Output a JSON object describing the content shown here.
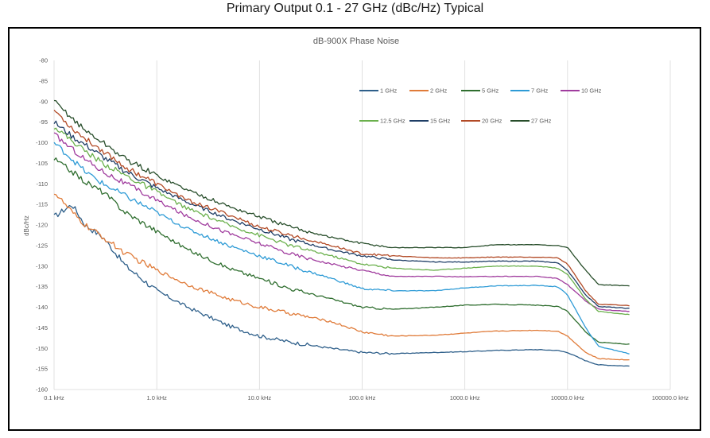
{
  "header": {
    "title": "Primary Output 0.1 - 27 GHz (dBc/Hz) Typical"
  },
  "chart_data": {
    "type": "line",
    "title": "dB-900X Phase Noise",
    "xlabel": "",
    "ylabel": "dBc/Hz",
    "x_scale": "log",
    "xlim": [
      0.1,
      100000
    ],
    "ylim": [
      -160,
      -80
    ],
    "x_ticks": [
      0.1,
      1,
      10,
      100,
      1000,
      10000,
      100000
    ],
    "x_tick_labels": [
      "0.1 kHz",
      "1.0 kHz",
      "10.0 kHz",
      "100.0 kHz",
      "1000.0 kHz",
      "10000.0 kHz",
      "100000.0 kHz"
    ],
    "y_ticks": [
      -80,
      -85,
      -90,
      -95,
      -100,
      -105,
      -110,
      -115,
      -120,
      -125,
      -130,
      -135,
      -140,
      -145,
      -150,
      -155,
      -160
    ],
    "grid": "vertical",
    "legend_position": "top-right",
    "series": [
      {
        "name": "1 GHz",
        "color": "#2E5F8A",
        "x": [
          0.1,
          0.15,
          0.2,
          0.3,
          0.5,
          1,
          2,
          5,
          10,
          20,
          50,
          100,
          200,
          500,
          1000,
          2000,
          5000,
          8000,
          10000,
          15000,
          20000,
          40000
        ],
        "y": [
          -118,
          -115,
          -120,
          -123,
          -130,
          -136,
          -140,
          -144.5,
          -147,
          -148.5,
          -150,
          -151,
          -151.3,
          -151,
          -150.8,
          -150.5,
          -150.3,
          -150.5,
          -151,
          -153,
          -154,
          -154.3
        ]
      },
      {
        "name": "2 GHz",
        "color": "#E07B39",
        "x": [
          0.1,
          0.15,
          0.2,
          0.3,
          0.5,
          1,
          2,
          5,
          10,
          20,
          50,
          100,
          200,
          500,
          1000,
          2000,
          5000,
          8000,
          10000,
          15000,
          20000,
          40000
        ],
        "y": [
          -112,
          -117,
          -120,
          -123,
          -127,
          -131,
          -134.5,
          -138,
          -140,
          -141.5,
          -143.5,
          -146,
          -147,
          -146.8,
          -146.3,
          -145.8,
          -145.6,
          -145.8,
          -147,
          -151,
          -152.5,
          -152.8
        ]
      },
      {
        "name": "5 GHz",
        "color": "#2F6E2F",
        "x": [
          0.1,
          0.15,
          0.2,
          0.3,
          0.5,
          1,
          2,
          5,
          10,
          20,
          50,
          100,
          200,
          500,
          1000,
          2000,
          5000,
          8000,
          10000,
          15000,
          20000,
          40000
        ],
        "y": [
          -104,
          -107,
          -109.5,
          -112,
          -117,
          -121.5,
          -126,
          -130.5,
          -133,
          -135.5,
          -138,
          -140,
          -140.5,
          -140,
          -139.5,
          -139.3,
          -139.5,
          -139.8,
          -141,
          -146,
          -148.5,
          -149
        ]
      },
      {
        "name": "7 GHz",
        "color": "#2E9BD6",
        "x": [
          0.1,
          0.15,
          0.2,
          0.3,
          0.5,
          1,
          2,
          5,
          10,
          20,
          50,
          100,
          200,
          500,
          1000,
          2000,
          5000,
          8000,
          10000,
          15000,
          20000,
          40000
        ],
        "y": [
          -100,
          -104,
          -107,
          -110,
          -113,
          -117,
          -121,
          -125,
          -127.5,
          -130,
          -133,
          -135.5,
          -136,
          -136,
          -135.3,
          -134.8,
          -134.7,
          -135,
          -137,
          -145,
          -149.5,
          -151.3
        ]
      },
      {
        "name": "10 GHz",
        "color": "#A03C9E",
        "x": [
          0.1,
          0.15,
          0.2,
          0.3,
          0.5,
          1,
          2,
          5,
          10,
          20,
          50,
          100,
          200,
          500,
          1000,
          2000,
          5000,
          8000,
          10000,
          15000,
          20000,
          40000
        ],
        "y": [
          -98,
          -101.5,
          -104,
          -107,
          -110,
          -114,
          -118,
          -122,
          -124.5,
          -127,
          -129.5,
          -131,
          -132.5,
          -132.5,
          -132.6,
          -132.5,
          -132.5,
          -133,
          -134.5,
          -138.5,
          -140.5,
          -141
        ]
      },
      {
        "name": "12.5 GHz",
        "color": "#6AB04C",
        "x": [
          0.1,
          0.15,
          0.2,
          0.3,
          0.5,
          1,
          2,
          5,
          10,
          20,
          50,
          100,
          200,
          500,
          1000,
          2000,
          5000,
          8000,
          10000,
          15000,
          20000,
          40000
        ],
        "y": [
          -96,
          -99.5,
          -102,
          -105,
          -108,
          -112,
          -116,
          -120,
          -122.5,
          -125,
          -127.5,
          -129.5,
          -130.5,
          -131,
          -130.5,
          -130,
          -130,
          -130.5,
          -132,
          -138,
          -141,
          -141.8
        ]
      },
      {
        "name": "15 GHz",
        "color": "#1F3E66",
        "x": [
          0.1,
          0.15,
          0.2,
          0.3,
          0.5,
          1,
          2,
          5,
          10,
          20,
          50,
          100,
          200,
          500,
          1000,
          2000,
          5000,
          8000,
          10000,
          15000,
          20000,
          40000
        ],
        "y": [
          -95,
          -98.5,
          -100.5,
          -103.5,
          -107,
          -111,
          -114.5,
          -118.5,
          -121,
          -123.5,
          -126,
          -127.5,
          -128.5,
          -129,
          -129,
          -128.8,
          -128.8,
          -129.2,
          -131,
          -137,
          -139.8,
          -140.3
        ]
      },
      {
        "name": "20 GHz",
        "color": "#B24A26",
        "x": [
          0.1,
          0.15,
          0.2,
          0.3,
          0.5,
          1,
          2,
          5,
          10,
          20,
          50,
          100,
          200,
          500,
          1000,
          2000,
          5000,
          8000,
          10000,
          15000,
          20000,
          40000
        ],
        "y": [
          -92,
          -96.5,
          -99,
          -102,
          -106,
          -110,
          -114,
          -117.5,
          -120.5,
          -122.5,
          -125,
          -127,
          -127.5,
          -128,
          -128,
          -127.8,
          -127.8,
          -128,
          -129.5,
          -136,
          -139.3,
          -139.6
        ]
      },
      {
        "name": "27 GHz",
        "color": "#274D2A",
        "x": [
          0.1,
          0.15,
          0.2,
          0.3,
          0.5,
          1,
          2,
          5,
          10,
          20,
          50,
          100,
          200,
          500,
          1000,
          2000,
          5000,
          8000,
          10000,
          15000,
          20000,
          40000
        ],
        "y": [
          -90,
          -94,
          -97,
          -100,
          -104,
          -108,
          -111.5,
          -115.5,
          -118,
          -120.5,
          -123,
          -124.5,
          -125.5,
          -125.5,
          -125.5,
          -124.8,
          -124.8,
          -125,
          -125.5,
          -131,
          -134.5,
          -134.8
        ]
      }
    ]
  }
}
